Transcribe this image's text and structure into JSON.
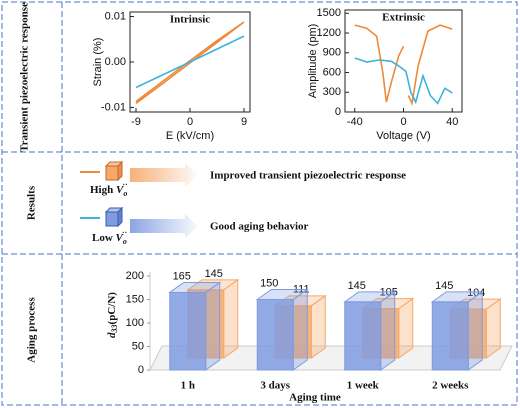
{
  "row_labels": [
    "Transient piezoelectric response",
    "Results",
    "Aging process"
  ],
  "results": {
    "high": "High",
    "low": "Low",
    "species": {
      "base": "V",
      "sub": "o",
      "sup": "··"
    },
    "high_text": "Improved transient piezoelectric response",
    "low_text": "Good aging behavior"
  },
  "chart_data": [
    {
      "type": "line",
      "title": "Intrinsic",
      "x_label": "E (kV/cm)",
      "y_label": "Strain (%)",
      "xlim": [
        -10,
        10
      ],
      "xticks": [
        -9,
        0,
        9
      ],
      "ylim": [
        -0.011,
        0.011
      ],
      "yticks": [
        -0.01,
        {
          "value": 0,
          "label": "0.00"
        },
        0.01
      ],
      "series": [
        {
          "color": "#ee8a3a",
          "x": [
            -9,
            -4.5,
            0,
            4.5,
            9,
            4.5,
            0,
            -4.5,
            -9
          ],
          "values": [
            -0.0091,
            -0.0047,
            -0.0002,
            0.0043,
            0.0088,
            0.0047,
            0.0003,
            -0.0042,
            -0.0087
          ]
        },
        {
          "color": "#3fb3dc",
          "x": [
            -9,
            0,
            9
          ],
          "values": [
            -0.0056,
            0,
            0.0057
          ]
        }
      ]
    },
    {
      "type": "line",
      "title": "Extrinsic",
      "x_label": "Voltage (V)",
      "y_label": "Amplitude (pm)",
      "xlim": [
        -48,
        48
      ],
      "xticks": [
        -40,
        0,
        40
      ],
      "ylim": [
        0,
        1550
      ],
      "yticks": [
        0,
        300,
        600,
        900,
        1200,
        1500
      ],
      "series": [
        {
          "color": "#ee8a3a",
          "x": [
            -40,
            -30,
            -22,
            -17,
            -14,
            -10,
            -4,
            0,
            0,
            4,
            7,
            12,
            20,
            30,
            40
          ],
          "values": [
            1320,
            1270,
            1150,
            600,
            150,
            450,
            850,
            1000,
            null,
            250,
            130,
            700,
            1230,
            1320,
            1260
          ]
        },
        {
          "color": "#3fb3dc",
          "x": [
            -40,
            -30,
            -20,
            -10,
            -4,
            2,
            6,
            10,
            16,
            22,
            28,
            34,
            40
          ],
          "values": [
            820,
            760,
            790,
            770,
            700,
            620,
            300,
            150,
            550,
            250,
            130,
            360,
            290
          ]
        }
      ]
    },
    {
      "type": "bar3d",
      "x_label": "Aging time",
      "y_label": {
        "symbol": "d",
        "sub": "33",
        "unit": "(pC/N)"
      },
      "categories": [
        "1 h",
        "3 days",
        "1 week",
        "2 weeks"
      ],
      "ylim": [
        0,
        200
      ],
      "yticks": [
        0,
        50,
        100,
        150,
        200
      ],
      "series": [
        {
          "color": "#7f9be0",
          "values": [
            165,
            150,
            145,
            145
          ]
        },
        {
          "color": "#f6a86a",
          "values": [
            145,
            111,
            105,
            104
          ]
        }
      ]
    }
  ]
}
